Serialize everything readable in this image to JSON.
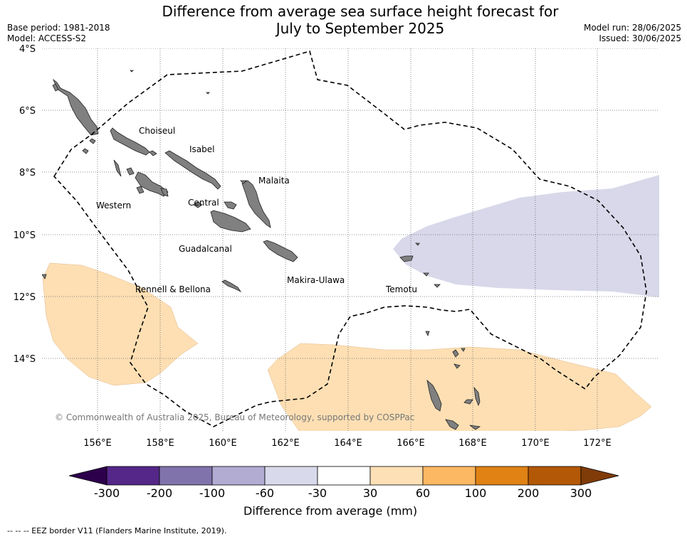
{
  "header": {
    "title_line1": "Difference from average sea surface height forecast for",
    "title_line2": "July to September 2025",
    "base_period": "Base period: 1981-2018",
    "model": "Model: ACCESS-S2",
    "model_run": "Model run: 28/06/2025",
    "issued": "Issued: 30/06/2025"
  },
  "map": {
    "lat_labels": [
      "4°S",
      "6°S",
      "8°S",
      "10°S",
      "12°S",
      "14°S"
    ],
    "lon_labels": [
      "156°E",
      "158°E",
      "160°E",
      "162°E",
      "164°E",
      "166°E",
      "168°E",
      "170°E",
      "172°E"
    ],
    "province_labels": [
      "Choiseul",
      "Isabel",
      "Malaita",
      "Western",
      "Central",
      "Guadalcanal",
      "Rennell & Bellona",
      "Makira-Ulawa",
      "Temotu"
    ],
    "copyright": "© Commonwealth of Australia 2025, Bureau of Meteorology, supported by COSPPac",
    "colors": {
      "land": "#808080",
      "anomaly_negative": "#d8d8ea",
      "anomaly_positive": "#fddfb3"
    }
  },
  "colorbar": {
    "ticks": [
      "-300",
      "-200",
      "-100",
      "-60",
      "-30",
      "30",
      "60",
      "100",
      "200",
      "300"
    ],
    "colors": [
      "#2d004b",
      "#542788",
      "#8073ac",
      "#b2abd2",
      "#d8daeb",
      "#ffffff",
      "#fee0b6",
      "#fdb863",
      "#e08214",
      "#b35806",
      "#7f3b08"
    ],
    "label": "Difference from average (mm)"
  },
  "legend": {
    "eez_note": "-- -- -- EEZ border V11 (Flanders Marine Institute, 2019)."
  }
}
